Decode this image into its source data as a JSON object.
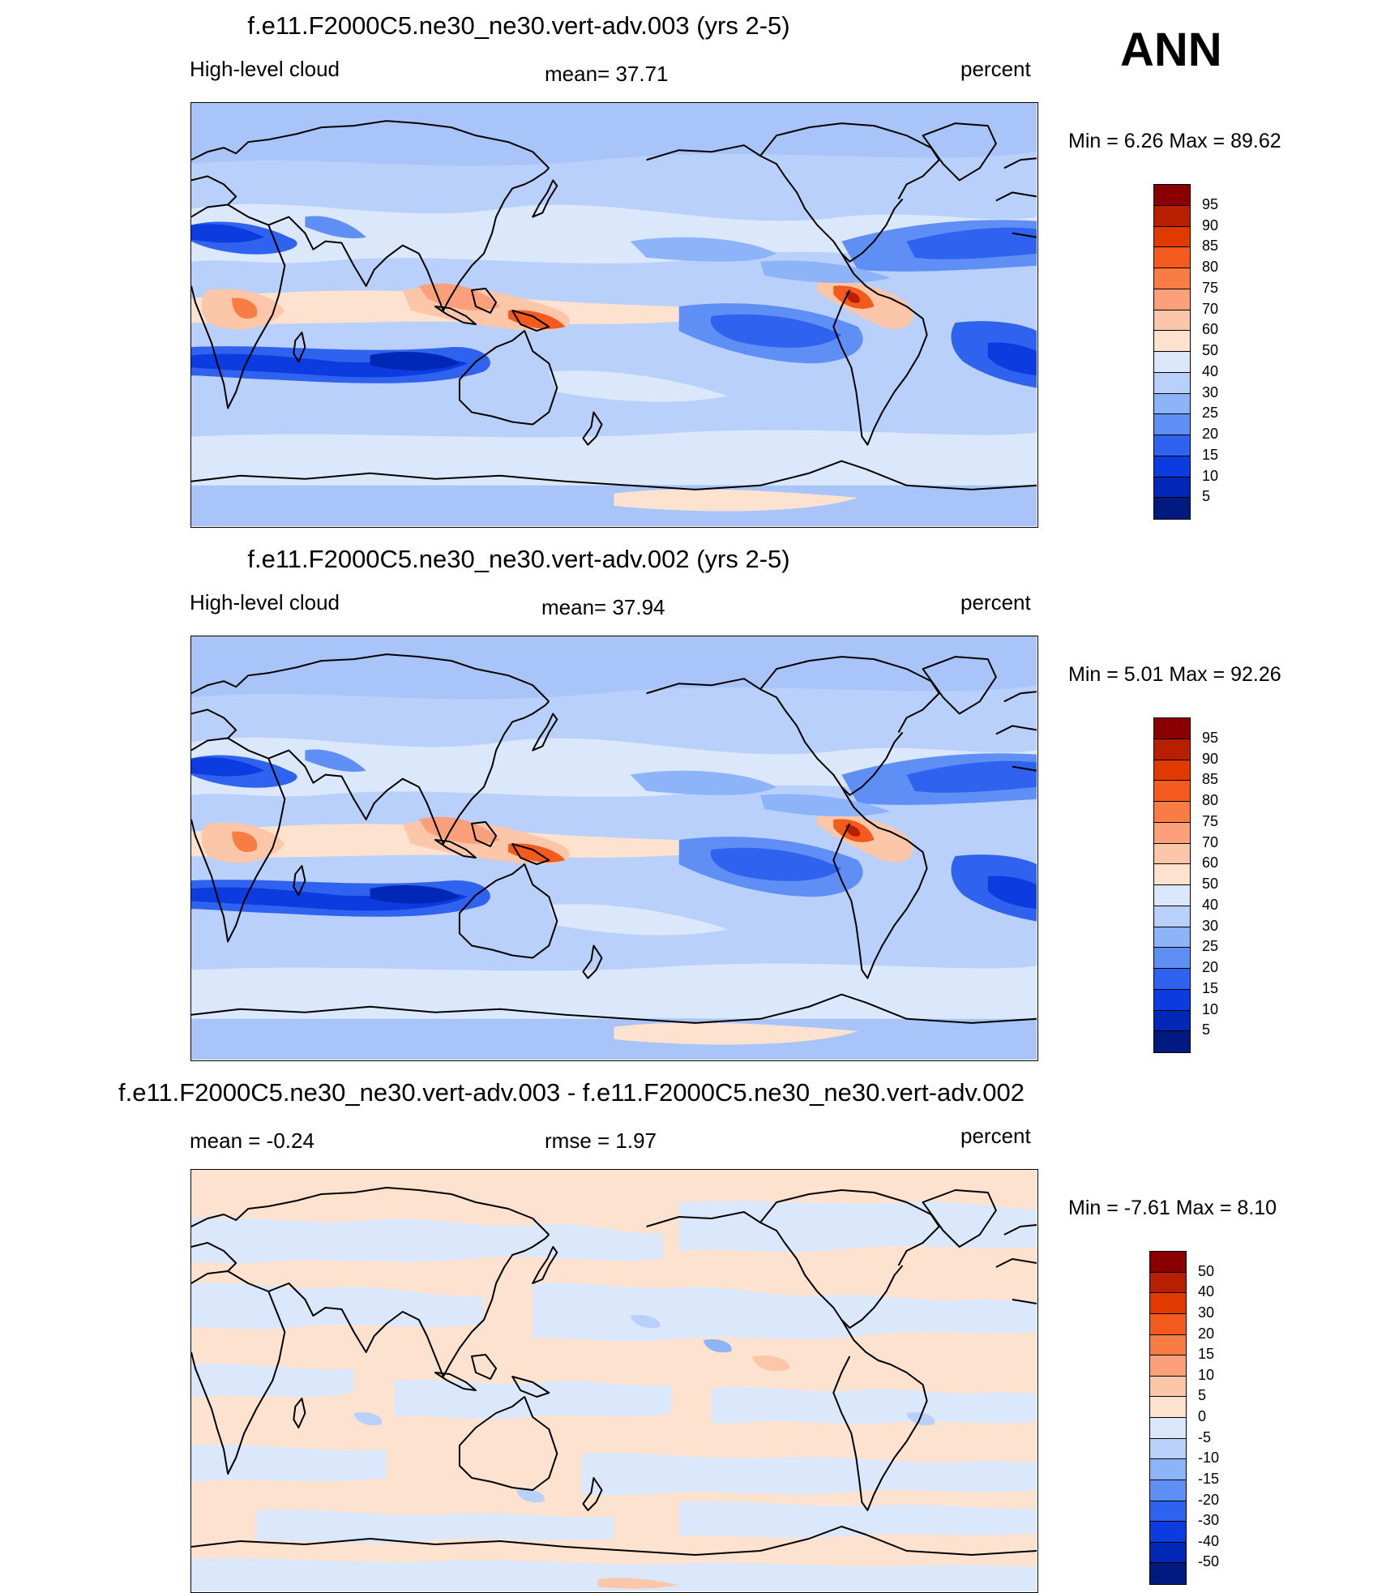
{
  "season": "ANN",
  "panels": [
    {
      "title": "f.e11.F2000C5.ne30_ne30.vert-adv.003 (yrs 2-5)",
      "left_label": "High-level cloud",
      "center_label": "mean=  37.71",
      "right_label": "percent",
      "minmax": "Min =    6.26 Max =  89.62",
      "colorbar": {
        "labels": [
          "95",
          "90",
          "85",
          "80",
          "75",
          "70",
          "60",
          "50",
          "40",
          "30",
          "25",
          "20",
          "15",
          "10",
          "5"
        ],
        "colors": [
          "#8a0000",
          "#b81e00",
          "#e03a00",
          "#f25a1e",
          "#f77d45",
          "#fba07a",
          "#fcc6a8",
          "#fde3cf",
          "#dbe8fb",
          "#b9d0fa",
          "#8db3f9",
          "#5f8ff5",
          "#2f62ef",
          "#0c3ce0",
          "#0027b5",
          "#001a80"
        ]
      }
    },
    {
      "title": "f.e11.F2000C5.ne30_ne30.vert-adv.002 (yrs 2-5)",
      "left_label": "High-level cloud",
      "center_label": "mean=  37.94",
      "right_label": "percent",
      "minmax": "Min =    5.01 Max =  92.26",
      "colorbar": {
        "labels": [
          "95",
          "90",
          "85",
          "80",
          "75",
          "70",
          "60",
          "50",
          "40",
          "30",
          "25",
          "20",
          "15",
          "10",
          "5"
        ],
        "colors": [
          "#8a0000",
          "#b81e00",
          "#e03a00",
          "#f25a1e",
          "#f77d45",
          "#fba07a",
          "#fcc6a8",
          "#fde3cf",
          "#dbe8fb",
          "#b9d0fa",
          "#8db3f9",
          "#5f8ff5",
          "#2f62ef",
          "#0c3ce0",
          "#0027b5",
          "#001a80"
        ]
      }
    },
    {
      "title": "f.e11.F2000C5.ne30_ne30.vert-adv.003 - f.e11.F2000C5.ne30_ne30.vert-adv.002",
      "left_label": "mean =  -0.24",
      "center_label": "rmse =   1.97",
      "right_label": "percent",
      "minmax": "Min =  -7.61 Max =   8.10",
      "colorbar": {
        "labels": [
          "50",
          "40",
          "30",
          "20",
          "15",
          "10",
          "5",
          "0",
          "-5",
          "-10",
          "-15",
          "-20",
          "-30",
          "-40",
          "-50"
        ],
        "colors": [
          "#8a0000",
          "#b81e00",
          "#e03a00",
          "#f25a1e",
          "#f77d45",
          "#fba07a",
          "#fcc6a8",
          "#fde3cf",
          "#dbe8fb",
          "#b9d0fa",
          "#8db3f9",
          "#5f8ff5",
          "#2f62ef",
          "#0c3ce0",
          "#0027b5",
          "#001a80"
        ]
      }
    }
  ]
}
